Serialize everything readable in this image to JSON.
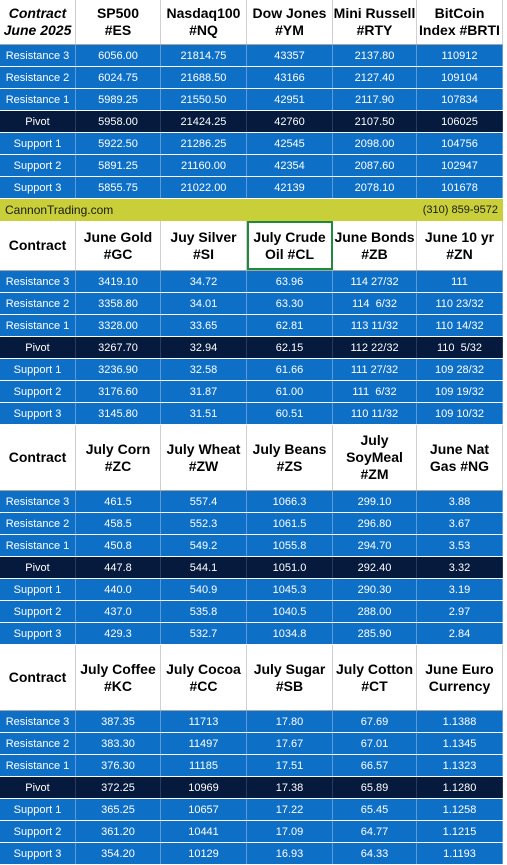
{
  "colors": {
    "level_row": "#0e6fc7",
    "pivot_row": "#061a3d",
    "banner": "#c9cf38",
    "header_bg": "#ffffff"
  },
  "banner": {
    "site": "CannonTrading.com",
    "phone": "(310) 859-9572"
  },
  "row_labels": [
    "Resistance 3",
    "Resistance 2",
    "Resistance 1",
    "Pivot",
    "Support 1",
    "Support 2",
    "Support 3"
  ],
  "tables": [
    {
      "headers": [
        "Contract\nJune 2025",
        "SP500\n#ES",
        "Nasdaq100\n#NQ",
        "Dow Jones\n#YM",
        "Mini Russell\n#RTY",
        "BitCoin\nIndex #BRTI"
      ],
      "rows": [
        [
          "6056.00",
          "21814.75",
          "43357",
          "2137.80",
          "110912"
        ],
        [
          "6024.75",
          "21688.50",
          "43166",
          "2127.40",
          "109104"
        ],
        [
          "5989.25",
          "21550.50",
          "42951",
          "2117.90",
          "107834"
        ],
        [
          "5958.00",
          "21424.25",
          "42760",
          "2107.50",
          "106025"
        ],
        [
          "5922.50",
          "21286.25",
          "42545",
          "2098.00",
          "104756"
        ],
        [
          "5891.25",
          "21160.00",
          "42354",
          "2087.60",
          "102947"
        ],
        [
          "5855.75",
          "21022.00",
          "42139",
          "2078.10",
          "101678"
        ]
      ]
    },
    {
      "headers": [
        "Contract",
        "June Gold\n#GC",
        "Juy Silver\n#SI",
        "July Crude\nOil #CL",
        "June Bonds\n#ZB",
        "June 10 yr\n#ZN"
      ],
      "rows": [
        [
          "3419.10",
          "34.72",
          "63.96",
          "114 27/32",
          "111"
        ],
        [
          "3358.80",
          "34.01",
          "63.30",
          "114  6/32",
          "110 23/32"
        ],
        [
          "3328.00",
          "33.65",
          "62.81",
          "113 11/32",
          "110 14/32"
        ],
        [
          "3267.70",
          "32.94",
          "62.15",
          "112 22/32",
          "110  5/32"
        ],
        [
          "3236.90",
          "32.58",
          "61.66",
          "111 27/32",
          "109 28/32"
        ],
        [
          "3176.60",
          "31.87",
          "61.00",
          "111  6/32",
          "109 19/32"
        ],
        [
          "3145.80",
          "31.51",
          "60.51",
          "110 11/32",
          "109 10/32"
        ]
      ]
    },
    {
      "headers": [
        "Contract",
        "July Corn\n#ZC",
        "July  Wheat\n#ZW",
        "July Beans\n#ZS",
        "July\nSoyMeal\n#ZM",
        "June Nat\nGas #NG"
      ],
      "rows": [
        [
          "461.5",
          "557.4",
          "1066.3",
          "299.10",
          "3.88"
        ],
        [
          "458.5",
          "552.3",
          "1061.5",
          "296.80",
          "3.67"
        ],
        [
          "450.8",
          "549.2",
          "1055.8",
          "294.70",
          "3.53"
        ],
        [
          "447.8",
          "544.1",
          "1051.0",
          "292.40",
          "3.32"
        ],
        [
          "440.0",
          "540.9",
          "1045.3",
          "290.30",
          "3.19"
        ],
        [
          "437.0",
          "535.8",
          "1040.5",
          "288.00",
          "2.97"
        ],
        [
          "429.3",
          "532.7",
          "1034.8",
          "285.90",
          "2.84"
        ]
      ]
    },
    {
      "headers": [
        "Contract",
        "July Coffee\n#KC",
        "July Cocoa\n#CC",
        "July Sugar\n#SB",
        "July Cotton\n#CT",
        "June Euro\nCurrency"
      ],
      "rows": [
        [
          "387.35",
          "11713",
          "17.80",
          "67.69",
          "1.1388"
        ],
        [
          "383.30",
          "11497",
          "17.67",
          "67.01",
          "1.1345"
        ],
        [
          "376.30",
          "11185",
          "17.51",
          "66.57",
          "1.1323"
        ],
        [
          "372.25",
          "10969",
          "17.38",
          "65.89",
          "1.1280"
        ],
        [
          "365.25",
          "10657",
          "17.22",
          "65.45",
          "1.1258"
        ],
        [
          "361.20",
          "10441",
          "17.09",
          "64.77",
          "1.1215"
        ],
        [
          "354.20",
          "10129",
          "16.93",
          "64.33",
          "1.1193"
        ]
      ]
    }
  ]
}
